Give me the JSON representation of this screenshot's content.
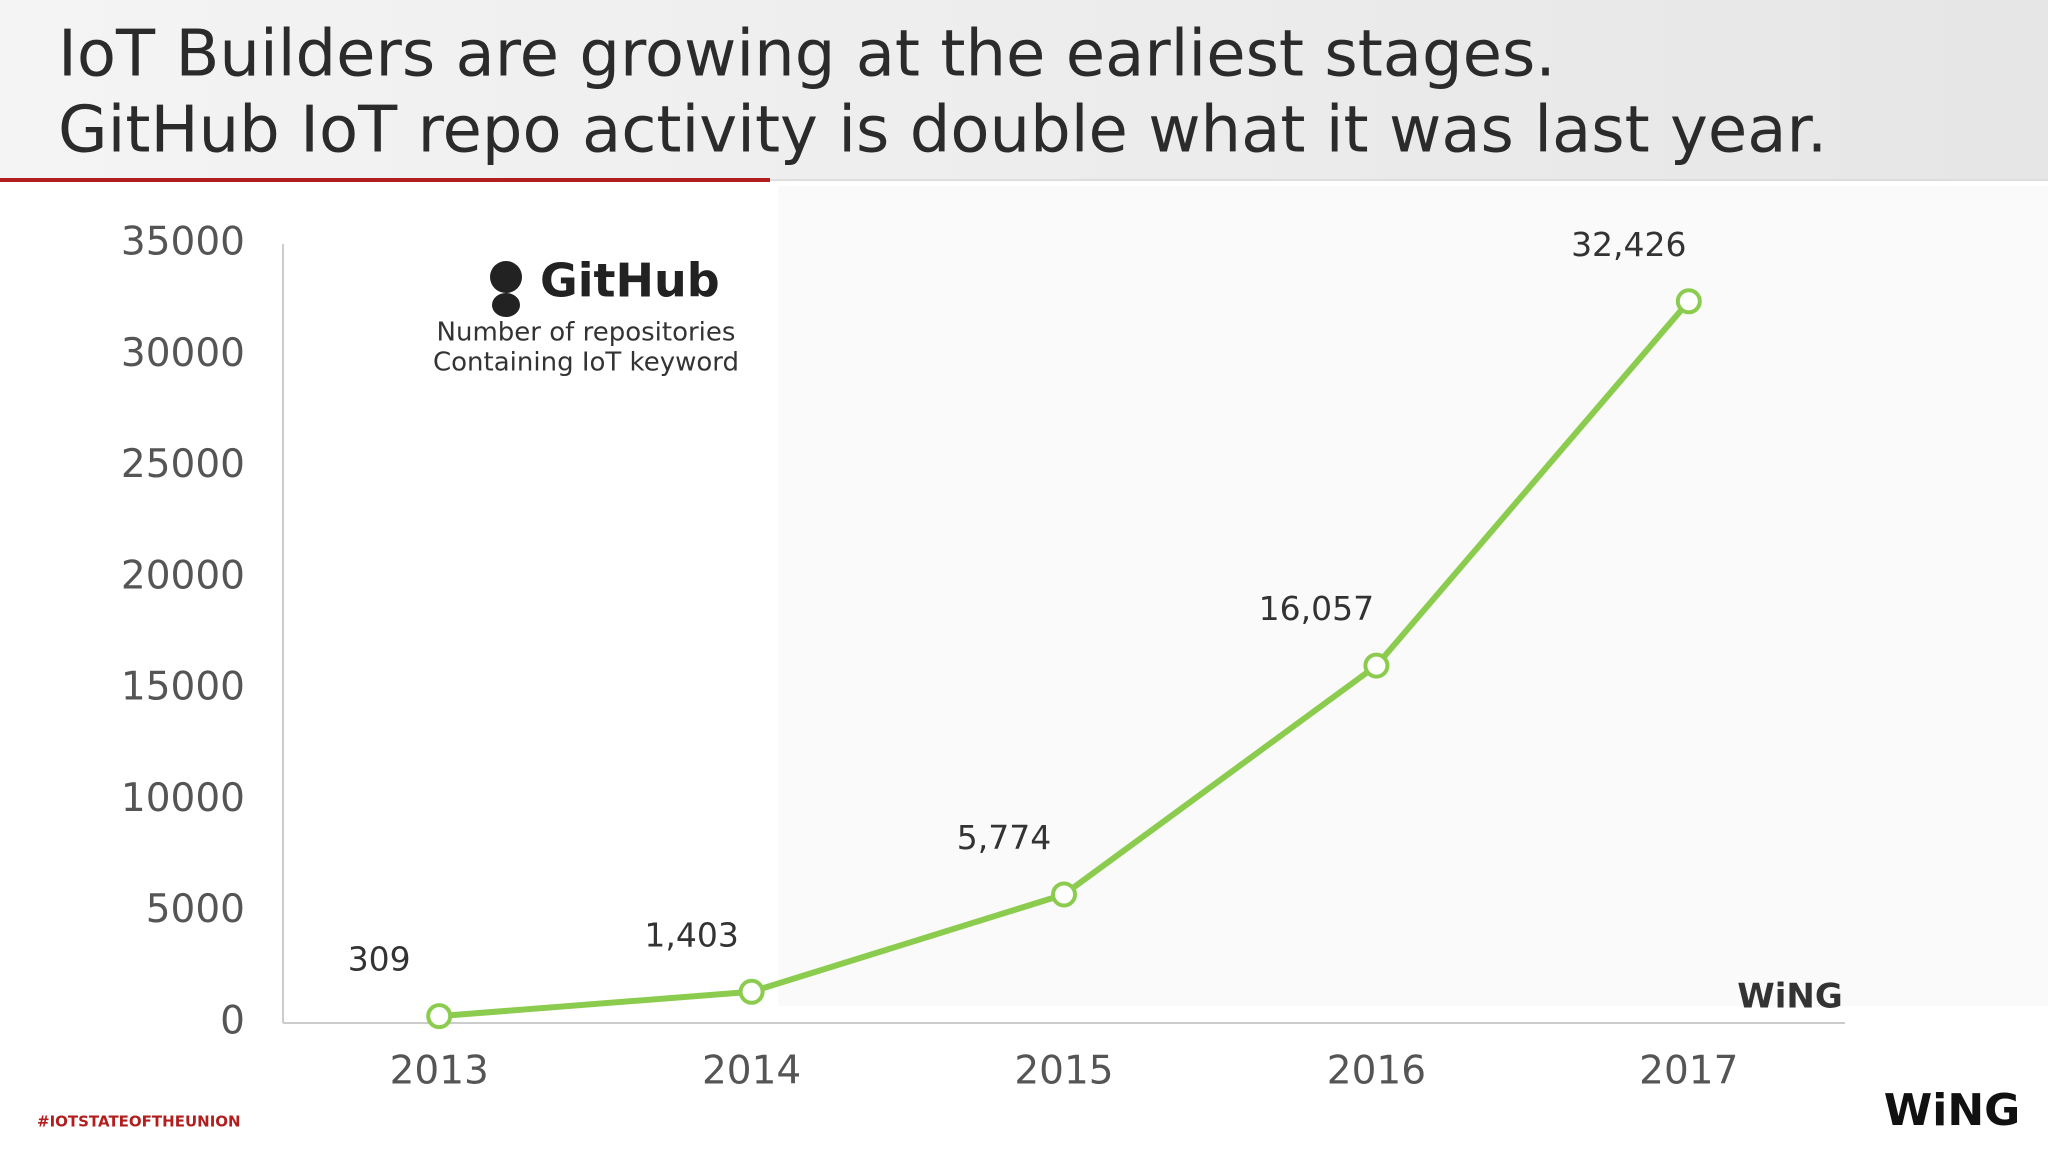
{
  "title_lines": [
    "IoT Builders are growing at the earliest stages.",
    "GitHub IoT repo activity is double what it was last year."
  ],
  "chart_data": {
    "type": "line",
    "categories": [
      "2013",
      "2014",
      "2015",
      "2016",
      "2017"
    ],
    "series": [
      {
        "name": "Number of repositories Containing IoT keyword",
        "color": "#8bcc4f",
        "values": [
          309,
          1403,
          5774,
          16057,
          32426
        ],
        "value_labels": [
          "309",
          "1,403",
          "5,774",
          "16,057",
          "32,426"
        ]
      }
    ],
    "ylim": [
      0,
      35000
    ],
    "yticks": [
      0,
      5000,
      10000,
      15000,
      20000,
      25000,
      30000,
      35000
    ],
    "logo_text": "GitHub",
    "annotation": [
      "Number of repositories",
      "Containing IoT keyword"
    ],
    "grid": false
  },
  "footer": {
    "hashtag": "#IOTSTATEOFTHEUNION",
    "brand": "WiNG"
  }
}
